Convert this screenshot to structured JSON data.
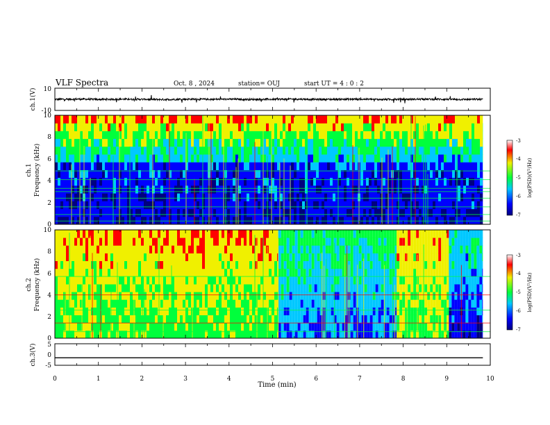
{
  "header": {
    "title": "VLF Spectra",
    "date": "Oct. 8 , 2024",
    "station": "station= OUJ",
    "start": "start UT = 4 : 0 : 2"
  },
  "chart_data": [
    {
      "type": "line",
      "name": "ch1_waveform",
      "ylabel": "ch.1(V)",
      "ylim": [
        -10,
        10
      ],
      "yticks": [
        "10",
        "-10"
      ],
      "x": [
        0,
        0.5,
        1,
        1.5,
        2,
        2.5,
        3,
        3.5,
        4,
        4.5,
        5,
        5.5,
        6,
        6.5,
        7,
        7.5,
        8,
        8.5,
        9,
        9.5,
        9.83
      ],
      "values": [
        0,
        0.2,
        -0.1,
        0.1,
        0,
        -0.2,
        0.1,
        0,
        0.1,
        -0.1,
        0,
        0.2,
        -0.1,
        0,
        0.1,
        -0.1,
        0,
        0.1,
        0,
        -0.1,
        0
      ]
    },
    {
      "type": "heatmap",
      "name": "ch1_spectrogram",
      "ylabel": "ch.1\nFrequency (kHz)",
      "ylim": [
        0,
        10
      ],
      "yticks": [
        "0",
        "2",
        "4",
        "6",
        "8",
        "10"
      ],
      "colorbar": {
        "label": "log(PSD)(V²/Hz)",
        "range": [
          -7,
          -3
        ],
        "ticks": [
          "-3",
          "-4",
          "-5",
          "-6",
          "-7"
        ]
      },
      "segments": [
        {
          "x_start": 0,
          "x_end": 9.83,
          "level": "active-upper-quiet-lower"
        }
      ]
    },
    {
      "type": "heatmap",
      "name": "ch2_spectrogram",
      "ylabel": "ch.2\nFrequency (kHz)",
      "ylim": [
        0,
        10
      ],
      "yticks": [
        "0",
        "2",
        "4",
        "6",
        "8",
        "10"
      ],
      "colorbar": {
        "label": "log(PSD)(V²/Hz)",
        "range": [
          -7,
          -3
        ],
        "ticks": [
          "-3",
          "-4",
          "-5",
          "-6",
          "-7"
        ]
      },
      "segments": [
        {
          "x_start": 0,
          "x_end": 5.13,
          "level": "high"
        },
        {
          "x_start": 5.13,
          "x_end": 7.85,
          "level": "low"
        },
        {
          "x_start": 7.85,
          "x_end": 9.05,
          "level": "high"
        },
        {
          "x_start": 9.05,
          "x_end": 9.83,
          "level": "very-low"
        }
      ]
    },
    {
      "type": "line",
      "name": "ch3_waveform",
      "ylabel": "ch.3(V)",
      "ylim": [
        -5,
        5
      ],
      "yticks": [
        "5",
        "0",
        "-5"
      ],
      "x": [
        0,
        9.83
      ],
      "values": [
        -1.5,
        -1.5
      ]
    }
  ],
  "xaxis": {
    "label": "Time (min)",
    "range": [
      0,
      10
    ],
    "ticks": [
      "0",
      "1",
      "2",
      "3",
      "4",
      "5",
      "6",
      "7",
      "8",
      "9",
      "10"
    ]
  },
  "colors": {
    "blue_dark": "#00007f",
    "blue": "#0000ff",
    "cyan": "#00c8ff",
    "green": "#00ff3c",
    "yellow": "#f0f000",
    "red": "#ff0000"
  }
}
